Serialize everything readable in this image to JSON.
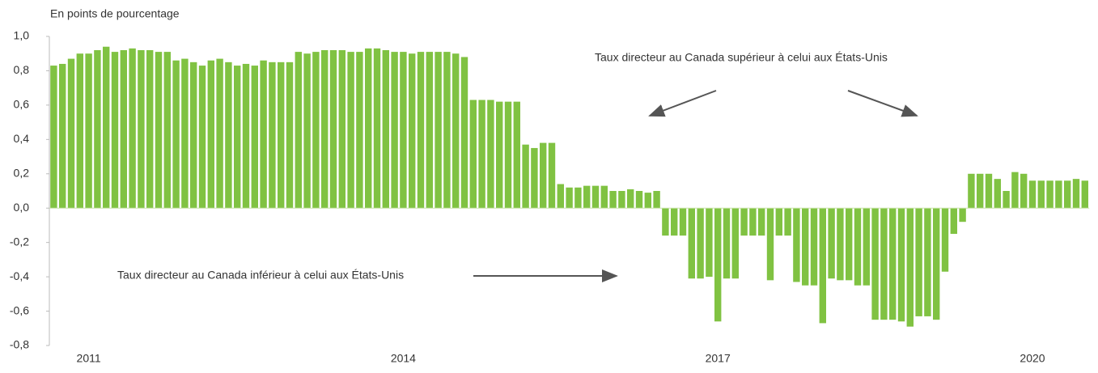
{
  "chart_data": {
    "type": "bar",
    "y_axis_label": "En points de pourcentage",
    "annotations": [
      "Taux directeur au Canada supérieur à celui aux États-Unis",
      "Taux directeur au Canada inférieur à celui aux États-Unis"
    ],
    "color": "#80c242",
    "ylim": [
      -0.8,
      1.0
    ],
    "yticks": [
      {
        "value": 1.0,
        "label": "1,0"
      },
      {
        "value": 0.8,
        "label": "0,8"
      },
      {
        "value": 0.6,
        "label": "0,6"
      },
      {
        "value": 0.4,
        "label": "0,4"
      },
      {
        "value": 0.2,
        "label": "0,2"
      },
      {
        "value": 0,
        "label": "0,0"
      },
      {
        "value": -0.2,
        "label": "-0,2"
      },
      {
        "value": -0.4,
        "label": "-0,4"
      },
      {
        "value": -0.6,
        "label": "-0,6"
      },
      {
        "value": -0.8,
        "label": "-0,8"
      }
    ],
    "categories": [
      null,
      null,
      null,
      null,
      "2011",
      null,
      null,
      null,
      null,
      null,
      null,
      null,
      null,
      null,
      null,
      null,
      null,
      null,
      null,
      null,
      null,
      null,
      null,
      null,
      null,
      null,
      null,
      null,
      null,
      null,
      null,
      null,
      null,
      null,
      null,
      null,
      null,
      null,
      null,
      null,
      "2014",
      null,
      null,
      null,
      null,
      null,
      null,
      null,
      null,
      null,
      null,
      null,
      null,
      null,
      null,
      null,
      null,
      null,
      null,
      null,
      null,
      null,
      null,
      null,
      null,
      null,
      null,
      null,
      null,
      null,
      null,
      null,
      null,
      null,
      null,
      null,
      "2017",
      null,
      null,
      null,
      null,
      null,
      null,
      null,
      null,
      null,
      null,
      null,
      null,
      null,
      null,
      null,
      null,
      null,
      null,
      null,
      null,
      null,
      null,
      null,
      null,
      null,
      null,
      null,
      null,
      null,
      null,
      null,
      null,
      null,
      null,
      null,
      "2020",
      null,
      null,
      null,
      null,
      null,
      null
    ],
    "values": [
      0.83,
      0.84,
      0.87,
      0.9,
      0.9,
      0.92,
      0.94,
      0.91,
      0.92,
      0.93,
      0.92,
      0.92,
      0.91,
      0.91,
      0.86,
      0.87,
      0.85,
      0.83,
      0.86,
      0.87,
      0.85,
      0.83,
      0.84,
      0.83,
      0.86,
      0.85,
      0.85,
      0.85,
      0.91,
      0.9,
      0.91,
      0.92,
      0.92,
      0.92,
      0.91,
      0.91,
      0.93,
      0.93,
      0.92,
      0.91,
      0.91,
      0.9,
      0.91,
      0.91,
      0.91,
      0.91,
      0.9,
      0.88,
      0.63,
      0.63,
      0.63,
      0.62,
      0.62,
      0.62,
      0.37,
      0.35,
      0.38,
      0.38,
      0.14,
      0.12,
      0.12,
      0.13,
      0.13,
      0.13,
      0.1,
      0.1,
      0.11,
      0.1,
      0.09,
      0.1,
      -0.16,
      -0.16,
      -0.16,
      -0.41,
      -0.41,
      -0.4,
      -0.66,
      -0.41,
      -0.41,
      -0.16,
      -0.16,
      -0.16,
      -0.42,
      -0.16,
      -0.16,
      -0.43,
      -0.45,
      -0.45,
      -0.67,
      -0.41,
      -0.42,
      -0.42,
      -0.45,
      -0.45,
      -0.65,
      -0.65,
      -0.65,
      -0.66,
      -0.69,
      -0.63,
      -0.63,
      -0.65,
      -0.37,
      -0.15,
      -0.08,
      0.2,
      0.2,
      0.2,
      0.17,
      0.1,
      0.21,
      0.2,
      0.16,
      0.16,
      0.16,
      0.16,
      0.16,
      0.17,
      0.16
    ]
  }
}
